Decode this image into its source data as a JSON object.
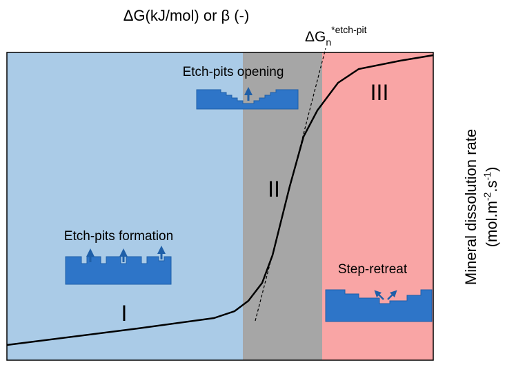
{
  "x_axis_label": "ΔG(kJ/mol) or β (-)",
  "y_axis_label": {
    "line1": "Mineral dissolution rate",
    "line2": {
      "open": "(mol.m",
      "exp1": "-2",
      "mid": ".s",
      "exp2": "-1",
      "close": ")"
    }
  },
  "threshold": {
    "base": "ΔG",
    "sub": "n",
    "sup": "*etch-pit"
  },
  "regions": [
    {
      "label": "I"
    },
    {
      "label": "II"
    },
    {
      "label": "III"
    }
  ],
  "mechanisms": [
    {
      "label": "Etch-pits formation"
    },
    {
      "label": "Etch-pits opening"
    },
    {
      "label": "Step-retreat"
    }
  ]
}
